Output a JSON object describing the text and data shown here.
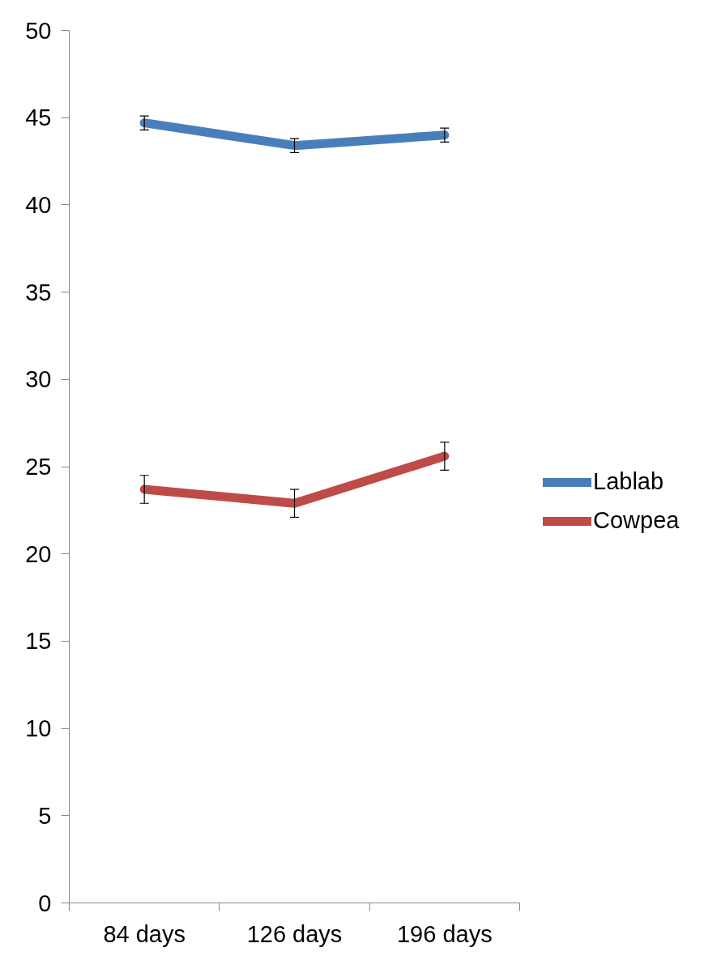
{
  "chart_data": {
    "type": "line",
    "categories": [
      "84 days",
      "126 days",
      "196 days"
    ],
    "series": [
      {
        "name": "Lablab",
        "color": "#4a7ebb",
        "values": [
          44.7,
          43.4,
          44.0
        ],
        "errors": [
          0.4,
          0.4,
          0.4
        ]
      },
      {
        "name": "Cowpea",
        "color": "#be4b48",
        "values": [
          23.7,
          22.9,
          25.6
        ],
        "errors": [
          0.8,
          0.8,
          0.8
        ]
      }
    ],
    "ylim": [
      0,
      50
    ],
    "yticks": [
      0,
      5,
      10,
      15,
      20,
      25,
      30,
      35,
      40,
      45,
      50
    ],
    "grid": false,
    "legend": "right",
    "marker": "none",
    "line_style": "solid"
  }
}
